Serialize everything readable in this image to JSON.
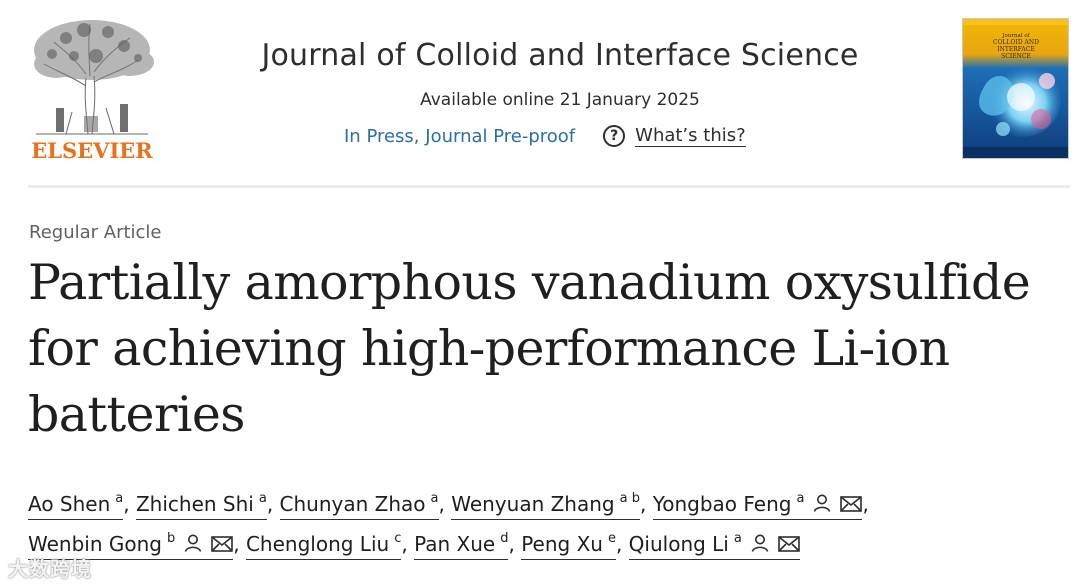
{
  "header": {
    "publisher_logo_text": "ELSEVIER",
    "journal_title": "Journal of Colloid and Interface Science",
    "availability": "Available online 21 January 2025",
    "status_link": "In Press, Journal Pre-proof",
    "help_link": "What’s this?",
    "help_icon_glyph": "?",
    "cover_text": "Journal of COLLOID AND INTERFACE SCIENCE"
  },
  "article": {
    "type": "Regular Article",
    "title": "Partially amorphous vanadium oxysulfide for achieving high-performance Li-ion batteries"
  },
  "authors": [
    {
      "name": "Ao Shen",
      "affil": "a",
      "icons": []
    },
    {
      "name": "Zhichen Shi",
      "affil": "a",
      "icons": []
    },
    {
      "name": "Chunyan Zhao",
      "affil": "a",
      "icons": []
    },
    {
      "name": "Wenyuan Zhang",
      "affil": "a b",
      "icons": []
    },
    {
      "name": "Yongbao Feng",
      "affil": "a",
      "icons": [
        "person-icon",
        "mail-icon"
      ]
    },
    {
      "name": "Wenbin Gong",
      "affil": "b",
      "icons": [
        "person-icon",
        "mail-icon"
      ]
    },
    {
      "name": "Chenglong Liu",
      "affil": "c",
      "icons": []
    },
    {
      "name": "Pan Xue",
      "affil": "d",
      "icons": []
    },
    {
      "name": "Peng Xu",
      "affil": "e",
      "icons": []
    },
    {
      "name": "Qiulong Li",
      "affil": "a",
      "icons": [
        "person-icon",
        "mail-icon"
      ]
    }
  ],
  "separator": ",",
  "watermark": "大数跨境",
  "colors": {
    "publisher_orange": "#e9711c",
    "link_blue": "#2a6fa8",
    "text": "#1f1f1f",
    "muted": "#606060"
  }
}
